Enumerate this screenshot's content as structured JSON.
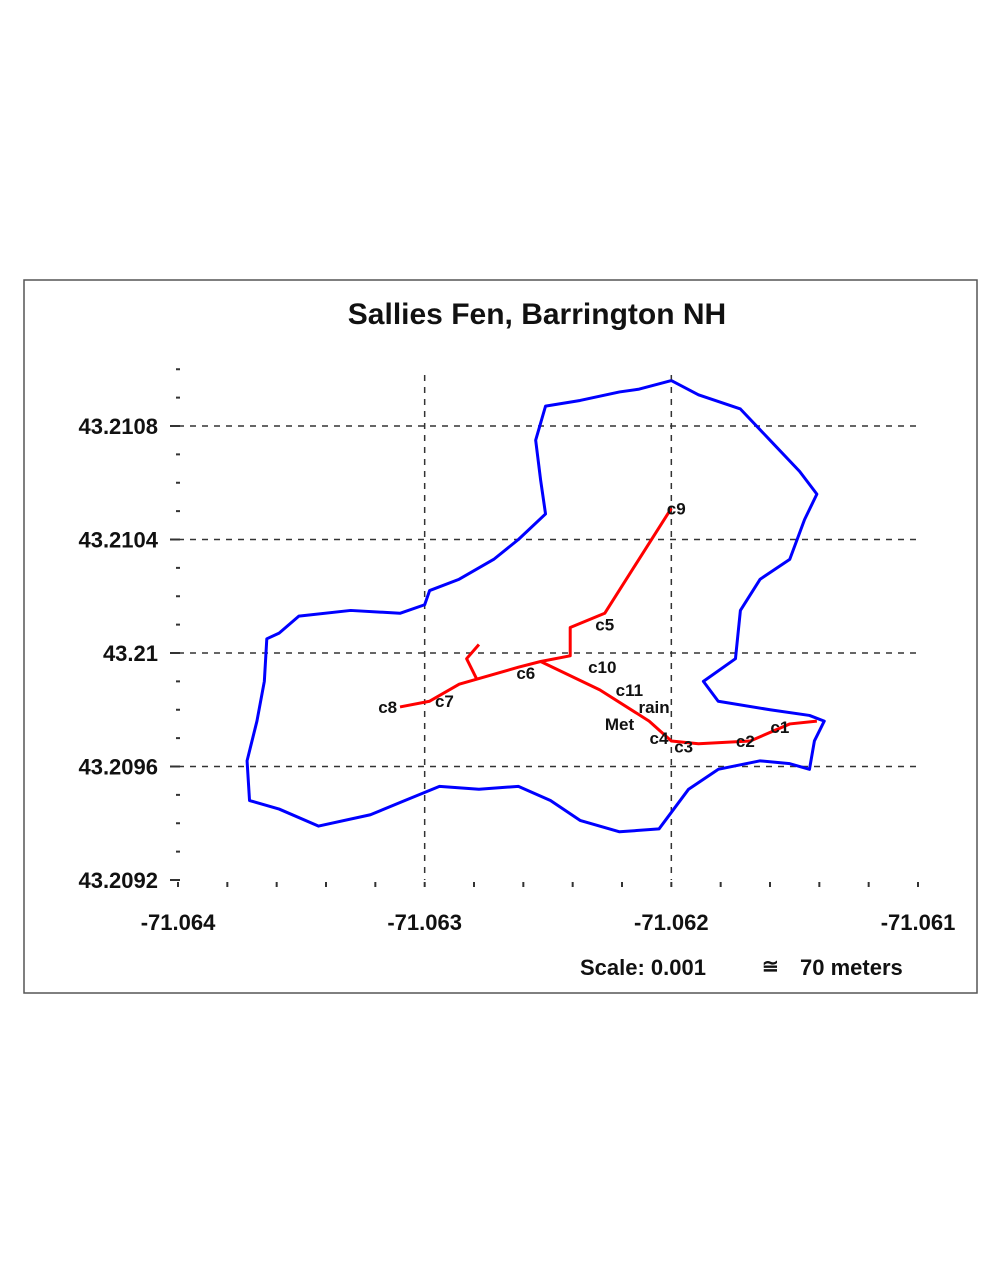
{
  "chart_data": {
    "type": "map",
    "title": "Sallies Fen, Barrington NH",
    "scale_label": "Scale: 0.001",
    "scale_symbol": "≅",
    "scale_value": "70 meters",
    "xlim": [
      -71.064,
      -71.061
    ],
    "ylim": [
      43.2092,
      43.211
    ],
    "grid": true,
    "x_ticks": [
      "-71.064",
      "-71.063",
      "-71.062",
      "-71.061"
    ],
    "y_ticks": [
      "43.2092",
      "43.2096",
      "43.21",
      "43.2104",
      "43.2108"
    ],
    "colors": {
      "boundary": "#0000ff",
      "transect": "#ff0000"
    },
    "boundary": [
      [
        -71.062,
        43.21096
      ],
      [
        -71.06189,
        43.21091
      ],
      [
        -71.06172,
        43.21086
      ],
      [
        -71.0616,
        43.21075
      ],
      [
        -71.06148,
        43.21064
      ],
      [
        -71.06141,
        43.21056
      ],
      [
        -71.06146,
        43.21047
      ],
      [
        -71.06152,
        43.21033
      ],
      [
        -71.06164,
        43.21026
      ],
      [
        -71.06172,
        43.21015
      ],
      [
        -71.06174,
        43.20998
      ],
      [
        -71.06187,
        43.2099
      ],
      [
        -71.06181,
        43.20983
      ],
      [
        -71.0616,
        43.2098
      ],
      [
        -71.06144,
        43.20978
      ],
      [
        -71.06138,
        43.20976
      ],
      [
        -71.06142,
        43.20969
      ],
      [
        -71.06144,
        43.20959
      ],
      [
        -71.06152,
        43.20961
      ],
      [
        -71.06164,
        43.20962
      ],
      [
        -71.06181,
        43.20959
      ],
      [
        -71.06193,
        43.20952
      ],
      [
        -71.06205,
        43.20938
      ],
      [
        -71.06221,
        43.20937
      ],
      [
        -71.06237,
        43.20941
      ],
      [
        -71.06249,
        43.20948
      ],
      [
        -71.06262,
        43.20953
      ],
      [
        -71.06278,
        43.20952
      ],
      [
        -71.06294,
        43.20953
      ],
      [
        -71.06308,
        43.20948
      ],
      [
        -71.06322,
        43.20943
      ],
      [
        -71.06343,
        43.20939
      ],
      [
        -71.06359,
        43.20945
      ],
      [
        -71.06371,
        43.20948
      ],
      [
        -71.06372,
        43.20962
      ],
      [
        -71.06368,
        43.20976
      ],
      [
        -71.06365,
        43.2099
      ],
      [
        -71.06364,
        43.21005
      ],
      [
        -71.06359,
        43.21007
      ],
      [
        -71.06351,
        43.21013
      ],
      [
        -71.0633,
        43.21015
      ],
      [
        -71.0631,
        43.21014
      ],
      [
        -71.063,
        43.21017
      ],
      [
        -71.06298,
        43.21022
      ],
      [
        -71.06286,
        43.21026
      ],
      [
        -71.06272,
        43.21033
      ],
      [
        -71.06262,
        43.2104
      ],
      [
        -71.06251,
        43.21049
      ],
      [
        -71.06253,
        43.21061
      ],
      [
        -71.06255,
        43.21075
      ],
      [
        -71.06251,
        43.21087
      ],
      [
        -71.06237,
        43.21089
      ],
      [
        -71.06221,
        43.21092
      ],
      [
        -71.06213,
        43.21093
      ],
      [
        -71.062,
        43.21096
      ]
    ],
    "transects": [
      [
        [
          -71.0631,
          43.20981
        ],
        [
          -71.06298,
          43.20983
        ],
        [
          -71.06286,
          43.20989
        ],
        [
          -71.06262,
          43.20995
        ],
        [
          -71.06253,
          43.20997
        ],
        [
          -71.06241,
          43.20999
        ],
        [
          -71.06241,
          43.21009
        ],
        [
          -71.06227,
          43.21014
        ],
        [
          -71.062,
          43.21051
        ]
      ],
      [
        [
          -71.06253,
          43.20997
        ],
        [
          -71.06229,
          43.20987
        ],
        [
          -71.06209,
          43.20976
        ],
        [
          -71.062,
          43.20969
        ],
        [
          -71.06189,
          43.20968
        ],
        [
          -71.06168,
          43.20969
        ],
        [
          -71.06152,
          43.20975
        ],
        [
          -71.06141,
          43.20976
        ]
      ],
      [
        [
          -71.06279,
          43.20991
        ],
        [
          -71.06283,
          43.20998
        ],
        [
          -71.06278,
          43.21003
        ]
      ]
    ],
    "sites": [
      {
        "label": "c9",
        "lon": -71.06198,
        "lat": 43.21051
      },
      {
        "label": "c5",
        "lon": -71.06227,
        "lat": 43.2101
      },
      {
        "label": "c6",
        "lon": -71.06259,
        "lat": 43.20993
      },
      {
        "label": "c10",
        "lon": -71.06228,
        "lat": 43.20995
      },
      {
        "label": "c11",
        "lon": -71.06217,
        "lat": 43.20987
      },
      {
        "label": "rain",
        "lon": -71.06207,
        "lat": 43.20981
      },
      {
        "label": "Met",
        "lon": -71.06221,
        "lat": 43.20975
      },
      {
        "label": "c4",
        "lon": -71.06205,
        "lat": 43.2097
      },
      {
        "label": "c3",
        "lon": -71.06195,
        "lat": 43.20967
      },
      {
        "label": "c2",
        "lon": -71.0617,
        "lat": 43.20969
      },
      {
        "label": "c1",
        "lon": -71.06156,
        "lat": 43.20974
      },
      {
        "label": "c7",
        "lon": -71.06292,
        "lat": 43.20983
      },
      {
        "label": "c8",
        "lon": -71.06315,
        "lat": 43.20981
      }
    ]
  }
}
